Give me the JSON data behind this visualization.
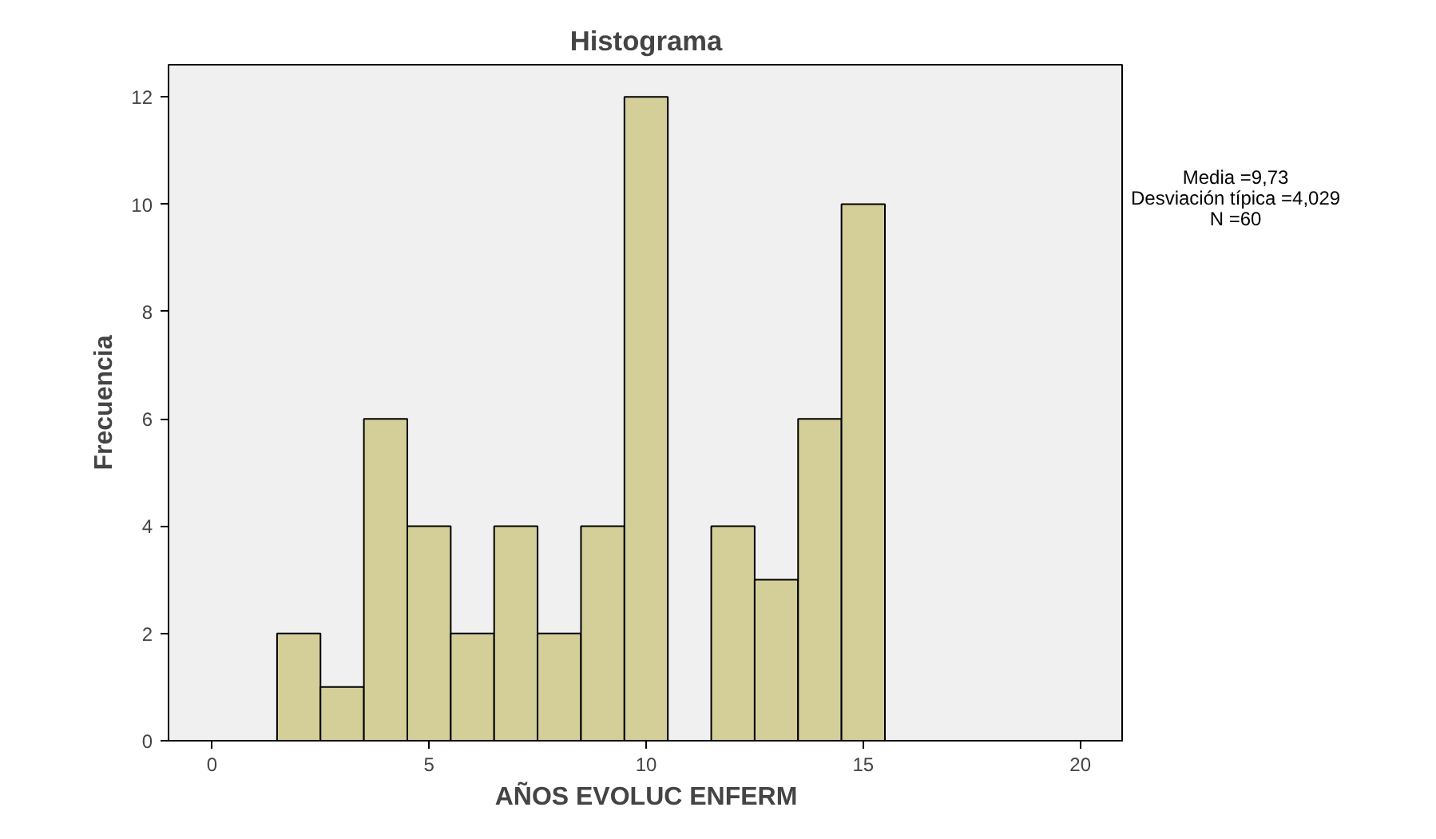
{
  "chart_data": {
    "type": "histogram",
    "title": "Histograma",
    "xlabel": "AÑOS EVOLUC ENFERM",
    "ylabel": "Frecuencia",
    "bins": [
      1.5,
      2.5,
      3.5,
      4.5,
      5.5,
      6.5,
      7.5,
      8.5,
      9.5,
      10.5,
      11.5,
      12.5,
      13.5,
      14.5,
      15.5
    ],
    "values": [
      2,
      1,
      6,
      4,
      2,
      4,
      2,
      4,
      12,
      0,
      4,
      3,
      6,
      10
    ],
    "color": "#d4cf98",
    "xlim": [
      -1,
      21
    ],
    "xticks": [
      0,
      5,
      10,
      15,
      20
    ],
    "ylim": [
      0,
      12.6
    ],
    "yticks": [
      0,
      2,
      4,
      6,
      8,
      10,
      12
    ],
    "grid": false,
    "annotations": [
      "Media =9,73",
      "Desviación típica =4,029",
      "N =60"
    ]
  }
}
